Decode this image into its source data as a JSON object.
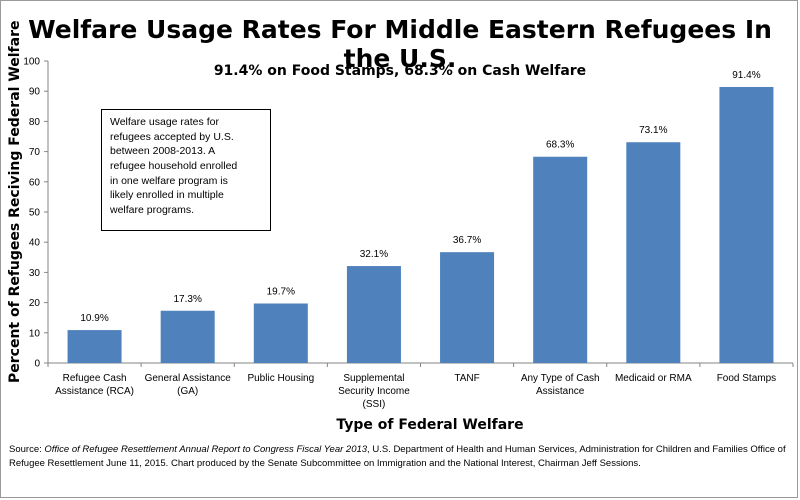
{
  "chart_data": {
    "type": "bar",
    "title": "Welfare Usage Rates For Middle Eastern Refugees In the U.S.",
    "subtitle": "91.4% on Food Stamps, 68.3% on Cash Welfare",
    "xlabel": "Type of Federal Welfare",
    "ylabel": "Percent of Refugees Reciving Federal Welfare",
    "ylim": [
      0,
      100
    ],
    "yticks": [
      0,
      10,
      20,
      30,
      40,
      50,
      60,
      70,
      80,
      90,
      100
    ],
    "grid": false,
    "bar_color": "#4F81BD",
    "categories": [
      "Refugee Cash Assistance (RCA)",
      "General Assistance (GA)",
      "Public Housing",
      "Supplemental Security Income (SSI)",
      "TANF",
      "Any Type of Cash Assistance",
      "Medicaid or RMA",
      "Food Stamps"
    ],
    "category_lines": [
      [
        "Refugee Cash",
        "Assistance (RCA)"
      ],
      [
        "General Assistance",
        "(GA)"
      ],
      [
        "Public Housing"
      ],
      [
        "Supplemental",
        "Security Income",
        "(SSI)"
      ],
      [
        "TANF"
      ],
      [
        "Any Type of Cash",
        "Assistance"
      ],
      [
        "Medicaid or RMA"
      ],
      [
        "Food Stamps"
      ]
    ],
    "values": [
      10.9,
      17.3,
      19.7,
      32.1,
      36.7,
      68.3,
      73.1,
      91.4
    ],
    "data_labels": [
      "10.9%",
      "17.3%",
      "19.7%",
      "32.1%",
      "36.7%",
      "68.3%",
      "73.1%",
      "91.4%"
    ]
  },
  "annotation_lines": [
    "Welfare usage rates for",
    "refugees accepted by U.S.",
    "between 2008-2013. A",
    "refugee household enrolled",
    "in one welfare program  is",
    "likely enrolled in multiple",
    "welfare programs."
  ],
  "source": {
    "prefix": "Source: ",
    "italic": "Office of Refugee Resettlement Annual Report to Congress Fiscal Year 2013",
    "rest": ", U.S. Department of Health and Human Services, Administration for Children and Families Office of Refugee Resettlement June 11, 2015. Chart produced by the Senate Subcommittee on Immigration and the National Interest, Chairman Jeff Sessions."
  }
}
